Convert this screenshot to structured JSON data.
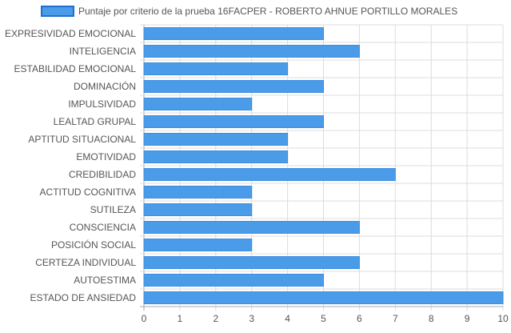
{
  "colors": {
    "bar_fill": "#4a9be8",
    "bar_stroke": "#3b8de0",
    "legend_fill": "#4a9be8",
    "legend_stroke": "#1f6fd0",
    "grid": "#dcdcdc",
    "axis": "#aaaaaa",
    "text": "#555555"
  },
  "chart_data": {
    "type": "bar",
    "orientation": "horizontal",
    "categories": [
      "EXPRESIVIDAD EMOCIONAL",
      "INTELIGENCIA",
      "ESTABILIDAD EMOCIONAL",
      "DOMINACIÓN",
      "IMPULSIVIDAD",
      "LEALTAD GRUPAL",
      "APTITUD SITUACIONAL",
      "EMOTIVIDAD",
      "CREDIBILIDAD",
      "ACTITUD COGNITIVA",
      "SUTILEZA",
      "CONSCIENCIA",
      "POSICIÓN SOCIAL",
      "CERTEZA INDIVIDUAL",
      "AUTOESTIMA",
      "ESTADO DE ANSIEDAD"
    ],
    "series": [
      {
        "name": "Puntaje por criterio de la prueba 16FACPER - ROBERTO AHNUE PORTILLO MORALES",
        "values": [
          5,
          6,
          4,
          5,
          3,
          5,
          4,
          4,
          7,
          3,
          3,
          6,
          3,
          6,
          5,
          10
        ]
      }
    ],
    "xlim": [
      0,
      10
    ],
    "xticks": [
      "0",
      "1",
      "2",
      "3",
      "4",
      "5",
      "6",
      "7",
      "8",
      "9",
      "10"
    ],
    "grid": true,
    "legend_position": "top"
  }
}
